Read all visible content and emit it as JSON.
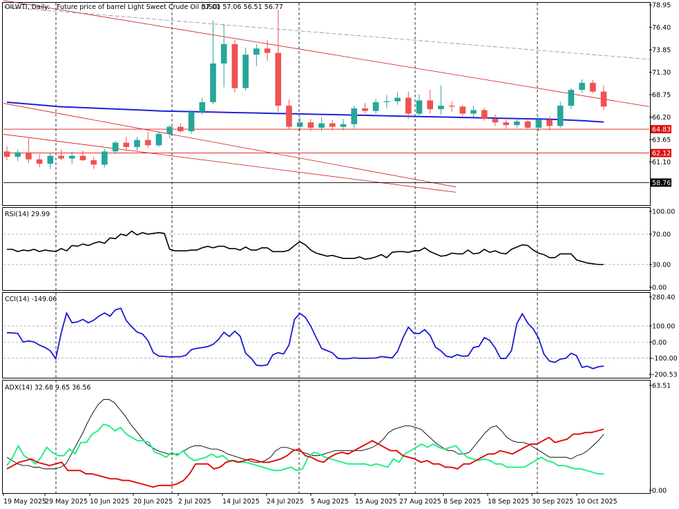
{
  "header": {
    "symbol": "OILWTI, Daily:",
    "description": "Future price of barrel Light Sweet Crude Oil (USD)",
    "ohlc": "57.01 57.06 56.51 56.77"
  },
  "colors": {
    "bull": "#26a69a",
    "bear": "#ef5350",
    "ma": "#1f1fd6",
    "rsi": "#000000",
    "cci": "#1a1ad0",
    "adx": "#000000",
    "plus_di": "#22ee88",
    "minus_di": "#e01010",
    "level_line": "#e01010",
    "current_price_line": "#000000",
    "trend_line": "#d01010",
    "upper_channel_line": "#7f8fa6"
  },
  "chart_data": [
    {
      "name": "price",
      "type": "candlestick",
      "x_labels": [
        "19 May 2025",
        "29 May 2025",
        "10 Jun 2025",
        "20 Jun 2025",
        "2 Jul 2025",
        "14 Jul 2025",
        "24 Jul 2025",
        "5 Aug 2025",
        "15 Aug 2025",
        "27 Aug 2025",
        "8 Sep 2025",
        "18 Sep 2025",
        "30 Sep 2025",
        "10 Oct 2025"
      ],
      "y_ticks": [
        "78.95",
        "76.40",
        "73.85",
        "71.30",
        "68.75",
        "66.20",
        "63.65",
        "61.10"
      ],
      "ylim": [
        56.2,
        79.2
      ],
      "level_labels": [
        {
          "label": "64.83",
          "value": 64.83
        },
        {
          "label": "62.12",
          "value": 62.12
        }
      ],
      "current_price_label": {
        "label": "58.76",
        "value": 58.76
      },
      "moving_average": [
        67.9,
        67.8,
        67.7,
        67.6,
        67.5,
        67.4,
        67.35,
        67.3,
        67.25,
        67.2,
        67.15,
        67.1,
        67.05,
        67.0,
        66.95,
        66.9,
        66.88,
        66.85,
        66.83,
        66.8,
        66.78,
        66.75,
        66.72,
        66.7,
        66.68,
        66.65,
        66.62,
        66.6,
        66.58,
        66.55,
        66.52,
        66.5,
        66.48,
        66.45,
        66.42,
        66.4,
        66.38,
        66.35,
        66.32,
        66.3,
        66.27,
        66.25,
        66.22,
        66.2,
        66.17,
        66.15,
        66.12,
        66.1,
        66.07,
        66.05,
        66.02,
        66.0,
        65.98,
        65.95,
        65.9,
        65.85,
        65.8,
        65.72,
        65.65
      ],
      "candles": [
        {
          "o": 62.3,
          "h": 62.9,
          "l": 61.3,
          "c": 61.7
        },
        {
          "o": 61.7,
          "h": 62.5,
          "l": 61.2,
          "c": 62.2
        },
        {
          "o": 62.2,
          "h": 63.8,
          "l": 61.0,
          "c": 61.4
        },
        {
          "o": 61.4,
          "h": 62.0,
          "l": 60.5,
          "c": 60.9
        },
        {
          "o": 60.9,
          "h": 62.1,
          "l": 60.3,
          "c": 61.8
        },
        {
          "o": 61.8,
          "h": 62.5,
          "l": 61.3,
          "c": 61.5
        },
        {
          "o": 61.5,
          "h": 62.3,
          "l": 60.9,
          "c": 61.8
        },
        {
          "o": 61.8,
          "h": 62.4,
          "l": 61.2,
          "c": 61.3
        },
        {
          "o": 61.3,
          "h": 61.7,
          "l": 60.3,
          "c": 60.8
        },
        {
          "o": 60.8,
          "h": 62.6,
          "l": 60.5,
          "c": 62.3
        },
        {
          "o": 62.3,
          "h": 63.5,
          "l": 62.0,
          "c": 63.3
        },
        {
          "o": 63.3,
          "h": 64.0,
          "l": 62.5,
          "c": 62.8
        },
        {
          "o": 62.8,
          "h": 63.9,
          "l": 62.4,
          "c": 63.6
        },
        {
          "o": 63.6,
          "h": 64.5,
          "l": 62.7,
          "c": 63.0
        },
        {
          "o": 63.0,
          "h": 64.6,
          "l": 62.8,
          "c": 64.3
        },
        {
          "o": 64.3,
          "h": 65.3,
          "l": 63.8,
          "c": 65.1
        },
        {
          "o": 65.1,
          "h": 65.5,
          "l": 64.4,
          "c": 64.6
        },
        {
          "o": 64.6,
          "h": 67.0,
          "l": 64.3,
          "c": 66.8
        },
        {
          "o": 66.8,
          "h": 68.4,
          "l": 66.5,
          "c": 67.9
        },
        {
          "o": 67.9,
          "h": 77.2,
          "l": 67.7,
          "c": 72.3
        },
        {
          "o": 72.3,
          "h": 76.8,
          "l": 69.6,
          "c": 74.5
        },
        {
          "o": 74.5,
          "h": 75.0,
          "l": 69.0,
          "c": 69.5
        },
        {
          "o": 69.5,
          "h": 74.1,
          "l": 69.2,
          "c": 73.3
        },
        {
          "o": 73.3,
          "h": 74.5,
          "l": 72.0,
          "c": 74.0
        },
        {
          "o": 74.0,
          "h": 75.0,
          "l": 72.6,
          "c": 73.5
        },
        {
          "o": 73.5,
          "h": 78.4,
          "l": 66.8,
          "c": 67.5
        },
        {
          "o": 67.5,
          "h": 68.2,
          "l": 64.8,
          "c": 65.1
        },
        {
          "o": 65.1,
          "h": 66.2,
          "l": 64.6,
          "c": 65.6
        },
        {
          "o": 65.6,
          "h": 66.0,
          "l": 64.6,
          "c": 65.0
        },
        {
          "o": 65.0,
          "h": 66.2,
          "l": 64.6,
          "c": 65.5
        },
        {
          "o": 65.5,
          "h": 65.9,
          "l": 64.7,
          "c": 65.1
        },
        {
          "o": 65.1,
          "h": 66.0,
          "l": 64.7,
          "c": 65.4
        },
        {
          "o": 65.4,
          "h": 67.5,
          "l": 64.9,
          "c": 67.2
        },
        {
          "o": 67.2,
          "h": 67.8,
          "l": 66.6,
          "c": 66.9
        },
        {
          "o": 66.9,
          "h": 68.3,
          "l": 66.6,
          "c": 67.9
        },
        {
          "o": 67.9,
          "h": 68.7,
          "l": 67.2,
          "c": 68.0
        },
        {
          "o": 68.0,
          "h": 69.0,
          "l": 67.6,
          "c": 68.4
        },
        {
          "o": 68.4,
          "h": 69.1,
          "l": 66.0,
          "c": 66.6
        },
        {
          "o": 66.6,
          "h": 68.8,
          "l": 66.2,
          "c": 68.1
        },
        {
          "o": 68.1,
          "h": 69.3,
          "l": 66.6,
          "c": 67.1
        },
        {
          "o": 67.1,
          "h": 69.8,
          "l": 66.5,
          "c": 67.5
        },
        {
          "o": 67.5,
          "h": 68.0,
          "l": 66.8,
          "c": 67.4
        },
        {
          "o": 67.4,
          "h": 67.6,
          "l": 66.3,
          "c": 66.6
        },
        {
          "o": 66.6,
          "h": 67.5,
          "l": 66.2,
          "c": 67.0
        },
        {
          "o": 67.0,
          "h": 67.3,
          "l": 65.8,
          "c": 66.0
        },
        {
          "o": 66.0,
          "h": 66.5,
          "l": 65.2,
          "c": 65.6
        },
        {
          "o": 65.6,
          "h": 66.2,
          "l": 64.9,
          "c": 65.3
        },
        {
          "o": 65.3,
          "h": 66.1,
          "l": 65.0,
          "c": 65.7
        },
        {
          "o": 65.7,
          "h": 66.0,
          "l": 64.8,
          "c": 65.0
        },
        {
          "o": 65.0,
          "h": 66.2,
          "l": 64.6,
          "c": 65.9
        },
        {
          "o": 65.9,
          "h": 66.3,
          "l": 64.7,
          "c": 65.2
        },
        {
          "o": 65.2,
          "h": 68.0,
          "l": 65.0,
          "c": 67.5
        },
        {
          "o": 67.5,
          "h": 69.5,
          "l": 67.1,
          "c": 69.3
        },
        {
          "o": 69.3,
          "h": 70.5,
          "l": 69.0,
          "c": 70.1
        },
        {
          "o": 70.1,
          "h": 70.4,
          "l": 68.9,
          "c": 69.1
        },
        {
          "o": 69.1,
          "h": 69.8,
          "l": 67.0,
          "c": 67.4
        }
      ],
      "trend_lines": [
        {
          "name": "upper-channel",
          "from": [
            0,
            78.7
          ],
          "to": [
            72,
            71.5
          ]
        },
        {
          "name": "descending-resistance",
          "from": [
            0,
            79.4
          ],
          "to": [
            72,
            64.8
          ]
        },
        {
          "name": "mid-trend",
          "from": [
            0,
            67.7
          ],
          "to": [
            50,
            56.3
          ]
        },
        {
          "name": "low-trend",
          "from": [
            0,
            64.2
          ],
          "to": [
            50,
            56.3
          ]
        }
      ]
    },
    {
      "name": "rsi",
      "type": "line",
      "label": "RSI(14) 29.99",
      "y_ticks": [
        "100.00",
        "70.00",
        "30.00",
        "0.00"
      ],
      "ylim": [
        0,
        100
      ],
      "values": [
        50,
        50,
        47,
        49,
        48,
        50,
        47,
        49,
        48,
        47,
        51,
        48,
        55,
        54,
        57,
        55,
        58,
        60,
        58,
        65,
        64,
        70,
        68,
        74,
        69,
        72,
        70,
        71,
        72,
        71,
        50,
        48,
        48,
        48,
        49,
        49,
        52,
        54,
        52,
        54,
        54,
        51,
        51,
        49,
        53,
        49,
        49,
        52,
        52,
        47,
        47,
        47,
        49,
        55,
        60,
        56,
        49,
        45,
        43,
        41,
        42,
        40,
        38,
        38,
        38,
        40,
        37,
        38,
        40,
        43,
        39,
        46,
        47,
        47,
        46,
        48,
        48,
        52,
        47,
        44,
        41,
        42,
        45,
        44,
        44,
        49,
        44,
        45,
        50,
        46,
        48,
        45,
        44,
        50,
        53,
        56,
        55,
        49,
        45,
        43,
        39,
        39,
        44,
        44,
        44,
        36,
        34,
        32,
        31,
        30,
        30
      ]
    },
    {
      "name": "cci",
      "type": "line",
      "label": "CCI(14) -149.06",
      "y_ticks": [
        "280.40",
        "100.00",
        "0.00",
        "-100.00",
        "-200.53"
      ],
      "ylim": [
        -200.53,
        280.4
      ],
      "values": [
        58,
        57,
        54,
        0,
        7,
        1,
        -19,
        -33,
        -54,
        -104,
        56,
        180,
        120,
        125,
        141,
        120,
        136,
        162,
        181,
        161,
        200,
        210,
        134,
        95,
        62,
        50,
        9,
        -66,
        -87,
        -89,
        -92,
        -91,
        -91,
        -82,
        -47,
        -39,
        -34,
        -28,
        -14,
        16,
        61,
        35,
        68,
        36,
        -70,
        -100,
        -144,
        -147,
        -142,
        -79,
        -66,
        -74,
        -18,
        141,
        178,
        154,
        99,
        28,
        -39,
        -53,
        -67,
        -101,
        -104,
        -103,
        -98,
        -101,
        -101,
        -100,
        -99,
        -90,
        -94,
        -99,
        -58,
        26,
        93,
        55,
        53,
        77,
        42,
        -32,
        -55,
        -88,
        -94,
        -78,
        -88,
        -86,
        -33,
        -27,
        28,
        10,
        -37,
        -102,
        -101,
        -53,
        116,
        176,
        118,
        82,
        25,
        -76,
        -118,
        -126,
        -106,
        -101,
        -70,
        -85,
        -157,
        -150,
        -165,
        -154,
        -149
      ]
    },
    {
      "name": "adx",
      "type": "line",
      "label": "ADX(14) 32.68 9.65 36.56",
      "y_ticks": [
        "63.51",
        "0.00"
      ],
      "ylim": [
        0,
        63.51
      ],
      "series": [
        {
          "name": "ADX",
          "values": [
            20,
            18,
            16,
            15,
            15,
            14,
            14,
            13,
            13,
            13,
            14,
            16,
            22,
            28,
            34,
            41,
            47,
            52,
            55,
            55,
            53,
            49,
            45,
            40,
            36,
            32,
            28,
            26,
            24,
            23,
            22,
            22,
            22,
            24,
            26,
            27,
            27,
            26,
            25,
            25,
            24,
            22,
            21,
            20,
            19,
            18,
            17,
            17,
            18,
            20,
            24,
            26,
            26,
            25,
            24,
            23,
            22,
            21,
            21,
            22,
            23,
            24,
            24,
            24,
            24,
            24,
            24,
            25,
            26,
            28,
            31,
            35,
            37,
            38,
            39,
            39,
            38,
            37,
            34,
            31,
            28,
            26,
            24,
            24,
            22,
            22,
            23,
            27,
            31,
            35,
            38,
            39,
            36,
            32,
            30,
            29,
            29,
            28,
            26,
            24,
            22,
            20,
            20,
            20,
            20,
            19,
            21,
            22,
            24,
            27,
            30,
            34
          ]
        },
        {
          "name": "+DI",
          "values": [
            15,
            20,
            27,
            21,
            19,
            16,
            20,
            26,
            23,
            21,
            21,
            25,
            22,
            29,
            29,
            34,
            36,
            40,
            39,
            36,
            38,
            34,
            32,
            30,
            30,
            29,
            23,
            22,
            20,
            23,
            21,
            24,
            20,
            18,
            19,
            20,
            22,
            20,
            21,
            18,
            18,
            17,
            17,
            16,
            15,
            14,
            13,
            12,
            12,
            13,
            14,
            12,
            13,
            20,
            23,
            22,
            20,
            19,
            18,
            17,
            16,
            16,
            16,
            16,
            15,
            16,
            15,
            14,
            19,
            17,
            22,
            24,
            26,
            28,
            26,
            28,
            26,
            25,
            26,
            27,
            23,
            20,
            19,
            18,
            19,
            18,
            16,
            16,
            14,
            14,
            14,
            14,
            16,
            18,
            20,
            18,
            17,
            15,
            15,
            14,
            13,
            13,
            12,
            11,
            10,
            10
          ]
        },
        {
          "name": "-DI",
          "values": [
            13,
            15,
            17,
            18,
            19,
            17,
            16,
            15,
            16,
            17,
            12,
            12,
            12,
            10,
            10,
            9,
            8,
            7,
            7,
            6,
            6,
            5,
            4,
            3,
            2,
            3,
            3,
            3,
            4,
            6,
            10,
            16,
            16,
            16,
            13,
            14,
            17,
            18,
            17,
            18,
            19,
            18,
            17,
            17,
            18,
            19,
            21,
            24,
            25,
            21,
            20,
            18,
            17,
            20,
            22,
            23,
            22,
            24,
            26,
            28,
            30,
            28,
            26,
            24,
            24,
            21,
            20,
            19,
            17,
            18,
            16,
            16,
            14,
            14,
            13,
            16,
            16,
            18,
            20,
            22,
            22,
            24,
            23,
            22,
            24,
            26,
            28,
            28,
            30,
            32,
            29,
            30,
            31,
            34,
            34,
            35,
            35,
            36,
            37
          ]
        }
      ]
    }
  ]
}
